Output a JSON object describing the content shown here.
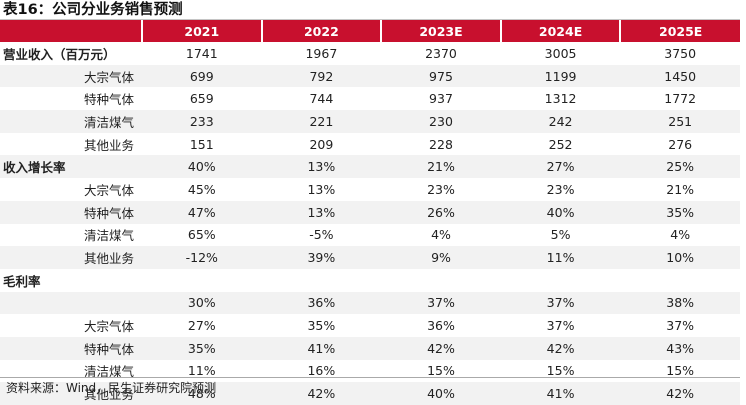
{
  "title": "表16：公司分业务销售预测",
  "columns": [
    "",
    "2021",
    "2022",
    "2023E",
    "2024E",
    "2025E"
  ],
  "rows": [
    {
      "label": "营业收入（百万元）",
      "level": "top",
      "values": [
        "1741",
        "1967",
        "2370",
        "3005",
        "3750"
      ]
    },
    {
      "label": "大宗气体",
      "level": "sub",
      "values": [
        "699",
        "792",
        "975",
        "1199",
        "1450"
      ]
    },
    {
      "label": "特种气体",
      "level": "sub",
      "values": [
        "659",
        "744",
        "937",
        "1312",
        "1772"
      ]
    },
    {
      "label": "清洁煤气",
      "level": "sub",
      "values": [
        "233",
        "221",
        "230",
        "242",
        "251"
      ]
    },
    {
      "label": "其他业务",
      "level": "sub",
      "values": [
        "151",
        "209",
        "228",
        "252",
        "276"
      ]
    },
    {
      "label": "收入增长率",
      "level": "top",
      "values": [
        "40%",
        "13%",
        "21%",
        "27%",
        "25%"
      ]
    },
    {
      "label": "大宗气体",
      "level": "sub",
      "values": [
        "45%",
        "13%",
        "23%",
        "23%",
        "21%"
      ]
    },
    {
      "label": "特种气体",
      "level": "sub",
      "values": [
        "47%",
        "13%",
        "26%",
        "40%",
        "35%"
      ]
    },
    {
      "label": "清洁煤气",
      "level": "sub",
      "values": [
        "65%",
        "-5%",
        "4%",
        "5%",
        "4%"
      ]
    },
    {
      "label": "其他业务",
      "level": "sub",
      "values": [
        "-12%",
        "39%",
        "9%",
        "11%",
        "10%"
      ]
    },
    {
      "label": "毛利率",
      "level": "top",
      "values": [
        "",
        "",
        "",
        "",
        ""
      ]
    },
    {
      "label": "",
      "level": "top",
      "values": [
        "30%",
        "36%",
        "37%",
        "37%",
        "38%"
      ]
    },
    {
      "label": "大宗气体",
      "level": "sub",
      "values": [
        "27%",
        "35%",
        "36%",
        "37%",
        "37%"
      ]
    },
    {
      "label": "特种气体",
      "level": "sub",
      "values": [
        "35%",
        "41%",
        "42%",
        "42%",
        "43%"
      ]
    },
    {
      "label": "清洁煤气",
      "level": "sub",
      "values": [
        "11%",
        "16%",
        "15%",
        "15%",
        "15%"
      ]
    },
    {
      "label": "其他业务",
      "level": "sub",
      "values": [
        "48%",
        "42%",
        "40%",
        "41%",
        "42%"
      ]
    }
  ],
  "source": "资料来源：Wind，民生证券研究院预测",
  "colors": {
    "header_bg": "#c8102e",
    "header_text": "#ffffff",
    "row_shade": "#f2f2f2"
  }
}
